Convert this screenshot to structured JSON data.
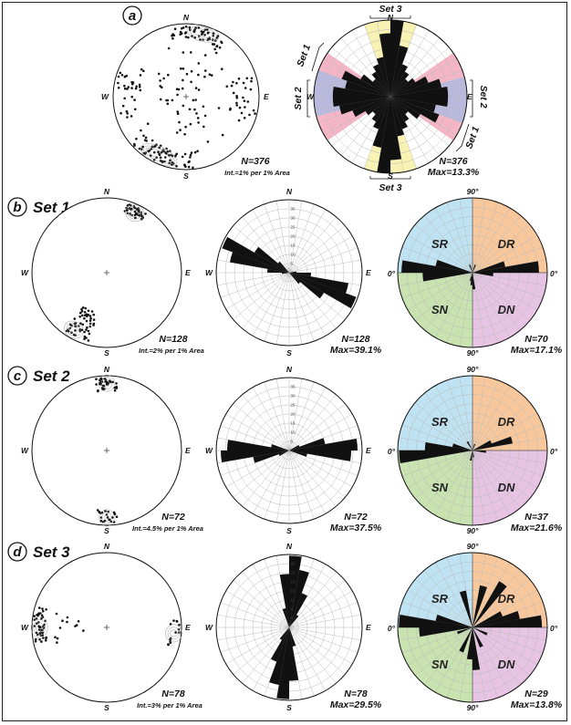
{
  "panel_a": {
    "badge": "a",
    "stereonet": {
      "N": "N",
      "E": "E",
      "S": "S",
      "W": "W",
      "count": "N=376",
      "interval": "Int.=1% per 1% Area"
    },
    "rose": {
      "N": "N",
      "E": "E",
      "S": "S",
      "W": "W",
      "count": "N=376",
      "max": "Max=13.3%",
      "set3_top": "Set 3",
      "set3_bottom": "Set 3",
      "set1_left": "Set 1",
      "set2_left": "Set 2",
      "set2_right": "Set 2",
      "set1_right": "Set 1"
    },
    "sector_colors": {
      "set1": "#f4b6c6",
      "set2": "#b9b8dd",
      "set3": "#f8f3b4"
    }
  },
  "rows": [
    {
      "badge": "b",
      "title": "Set 1",
      "stereonet": {
        "N": "N",
        "E": "E",
        "S": "S",
        "W": "W",
        "count": "N=128",
        "interval": "Int.=2% per 1% Area"
      },
      "rose": {
        "N": "N",
        "E": "E",
        "S": "S",
        "W": "W",
        "count": "N=128",
        "max": "Max=39.1%"
      },
      "dip": {
        "top": "90°",
        "left": "0°",
        "right": "0°",
        "bottom": "90°",
        "SR": "SR",
        "DR": "DR",
        "SN": "SN",
        "DN": "DN",
        "count": "N=70",
        "max": "Max=17.1%"
      }
    },
    {
      "badge": "c",
      "title": "Set 2",
      "stereonet": {
        "N": "N",
        "E": "E",
        "S": "S",
        "W": "W",
        "count": "N=72",
        "interval": "Int.=4.5% per 1% Area"
      },
      "rose": {
        "N": "N",
        "E": "E",
        "S": "S",
        "W": "W",
        "count": "N=72",
        "max": "Max=37.5%"
      },
      "dip": {
        "top": "90°",
        "left": "0°",
        "right": "0°",
        "bottom": "90°",
        "SR": "SR",
        "DR": "DR",
        "SN": "SN",
        "DN": "DN",
        "count": "N=37",
        "max": "Max=21.6%"
      }
    },
    {
      "badge": "d",
      "title": "Set 3",
      "stereonet": {
        "N": "N",
        "E": "E",
        "S": "S",
        "W": "W",
        "count": "N=78",
        "interval": "Int.=3% per 1% Area"
      },
      "rose": {
        "N": "N",
        "E": "E",
        "S": "S",
        "W": "W",
        "count": "N=78",
        "max": "Max=29.5%"
      },
      "dip": {
        "top": "90°",
        "left": "0°",
        "right": "0°",
        "bottom": "90°",
        "SR": "SR",
        "DR": "DR",
        "SN": "SN",
        "DN": "DN",
        "count": "N=29",
        "max": "Max=13.8%"
      }
    }
  ],
  "quadrant_colors": {
    "SR": "#bfe3f2",
    "DR": "#f8c89c",
    "SN": "#c8e2b0",
    "DN": "#e7c4e4"
  }
}
